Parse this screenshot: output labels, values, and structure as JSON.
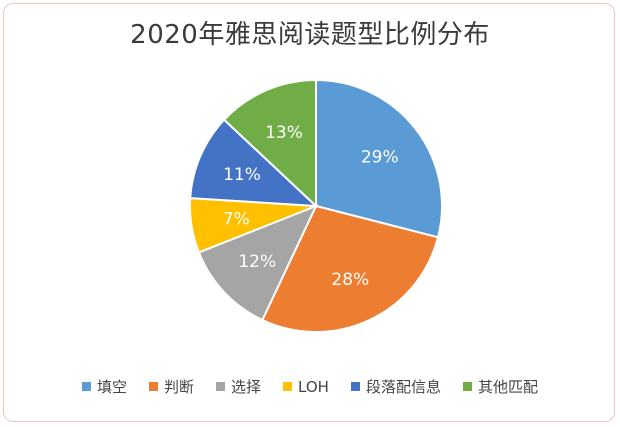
{
  "chart_data": {
    "type": "pie",
    "title": "2020年雅思阅读题型比例分布",
    "categories": [
      "填空",
      "判断",
      "选择",
      "LOH",
      "段落配信息",
      "其他匹配"
    ],
    "values": [
      29,
      28,
      12,
      7,
      11,
      13
    ],
    "labels": [
      "29%",
      "28%",
      "12%",
      "7%",
      "11%",
      "13%"
    ],
    "colors": [
      "#5b9bd5",
      "#ed7d31",
      "#a5a5a5",
      "#ffc000",
      "#4472c4",
      "#70ad47"
    ],
    "legend": "bottom"
  }
}
